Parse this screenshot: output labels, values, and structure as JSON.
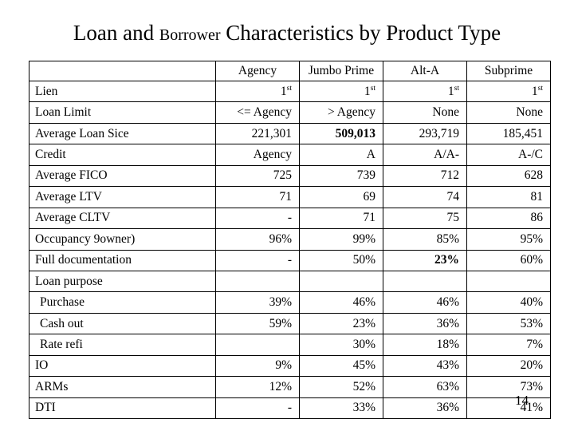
{
  "page": {
    "background": "#ffffff",
    "text_color": "#000000",
    "page_number": "14"
  },
  "title": {
    "part1": "Loan and",
    "part2": "Borrower",
    "part3": "Characteristics by Product Type"
  },
  "table": {
    "columns": [
      "",
      "Agency",
      "Jumbo Prime",
      "Alt-A",
      "Subprime"
    ],
    "rows": [
      {
        "label": "Lien",
        "indent": false,
        "values": [
          {
            "v": "1",
            "sup": "st"
          },
          {
            "v": "1",
            "sup": "st"
          },
          {
            "v": "1",
            "sup": "st"
          },
          {
            "v": "1",
            "sup": "st"
          }
        ]
      },
      {
        "label": "Loan Limit",
        "indent": false,
        "values": [
          "<= Agency",
          "> Agency",
          "None",
          "None"
        ]
      },
      {
        "label": "Average Loan Sice",
        "indent": false,
        "values": [
          "221,301",
          {
            "v": "509,013",
            "bold": true
          },
          "293,719",
          "185,451"
        ]
      },
      {
        "label": "Credit",
        "indent": false,
        "values": [
          "Agency",
          "A",
          "A/A-",
          "A-/C"
        ]
      },
      {
        "label": "Average FICO",
        "indent": false,
        "values": [
          "725",
          "739",
          "712",
          "628"
        ]
      },
      {
        "label": "Average LTV",
        "indent": false,
        "values": [
          "71",
          "69",
          "74",
          "81"
        ]
      },
      {
        "label": "Average CLTV",
        "indent": false,
        "values": [
          "-",
          "71",
          "75",
          "86"
        ]
      },
      {
        "label": "Occupancy 9owner)",
        "indent": false,
        "values": [
          "96%",
          "99%",
          "85%",
          "95%"
        ]
      },
      {
        "label": "Full documentation",
        "indent": false,
        "values": [
          "-",
          "50%",
          {
            "v": "23%",
            "bold": true
          },
          "60%"
        ]
      },
      {
        "label": "Loan purpose",
        "indent": false,
        "values": [
          "",
          "",
          "",
          ""
        ]
      },
      {
        "label": "Purchase",
        "indent": true,
        "values": [
          "39%",
          "46%",
          "46%",
          "40%"
        ]
      },
      {
        "label": "Cash out",
        "indent": true,
        "values": [
          "59%",
          "23%",
          "36%",
          "53%"
        ]
      },
      {
        "label": "Rate refi",
        "indent": true,
        "values": [
          "",
          "30%",
          "18%",
          "7%"
        ]
      },
      {
        "label": "IO",
        "indent": false,
        "values": [
          "9%",
          "45%",
          "43%",
          "20%"
        ]
      },
      {
        "label": "ARMs",
        "indent": false,
        "values": [
          "12%",
          "52%",
          "63%",
          "73%"
        ]
      },
      {
        "label": "DTI",
        "indent": false,
        "values": [
          "-",
          "33%",
          "36%",
          "41%"
        ]
      }
    ]
  }
}
